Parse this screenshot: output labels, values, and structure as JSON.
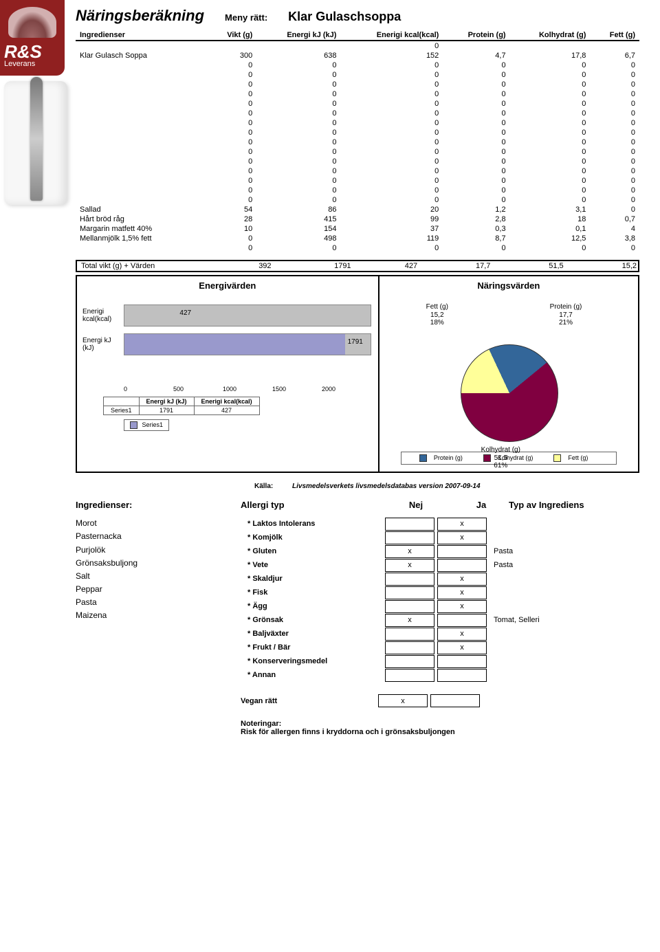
{
  "logo": {
    "big": "R&S",
    "small": "Leverans"
  },
  "header": {
    "title": "Näringsberäkning",
    "menu_label": "Meny rätt:",
    "dish": "Klar Gulaschsoppa"
  },
  "columns": [
    "Ingredienser",
    "Vikt (g)",
    "Energi kJ (kJ)",
    "Enerigi kcal(kcal)",
    "Protein (g)",
    "Kolhydrat (g)",
    "Fett (g)"
  ],
  "pre_row": [
    "",
    "",
    "",
    "0",
    "",
    "",
    ""
  ],
  "rows": [
    [
      "Klar Gulasch Soppa",
      "300",
      "638",
      "152",
      "4,7",
      "17,8",
      "6,7"
    ],
    [
      "",
      "0",
      "0",
      "0",
      "0",
      "0",
      "0"
    ],
    [
      "",
      "0",
      "0",
      "0",
      "0",
      "0",
      "0"
    ],
    [
      "",
      "0",
      "0",
      "0",
      "0",
      "0",
      "0"
    ],
    [
      "",
      "0",
      "0",
      "0",
      "0",
      "0",
      "0"
    ],
    [
      "",
      "0",
      "0",
      "0",
      "0",
      "0",
      "0"
    ],
    [
      "",
      "0",
      "0",
      "0",
      "0",
      "0",
      "0"
    ],
    [
      "",
      "0",
      "0",
      "0",
      "0",
      "0",
      "0"
    ],
    [
      "",
      "0",
      "0",
      "0",
      "0",
      "0",
      "0"
    ],
    [
      "",
      "0",
      "0",
      "0",
      "0",
      "0",
      "0"
    ],
    [
      "",
      "0",
      "0",
      "0",
      "0",
      "0",
      "0"
    ],
    [
      "",
      "0",
      "0",
      "0",
      "0",
      "0",
      "0"
    ],
    [
      "",
      "0",
      "0",
      "0",
      "0",
      "0",
      "0"
    ],
    [
      "",
      "0",
      "0",
      "0",
      "0",
      "0",
      "0"
    ],
    [
      "",
      "0",
      "0",
      "0",
      "0",
      "0",
      "0"
    ],
    [
      "",
      "0",
      "0",
      "0",
      "0",
      "0",
      "0"
    ],
    [
      "Sallad",
      "54",
      "86",
      "20",
      "1,2",
      "3,1",
      "0"
    ],
    [
      "Hårt bröd råg",
      "28",
      "415",
      "99",
      "2,8",
      "18",
      "0,7"
    ],
    [
      "Margarin matfett 40%",
      "10",
      "154",
      "37",
      "0,3",
      "0,1",
      "4"
    ],
    [
      "Mellanmjölk 1,5% fett",
      "0",
      "498",
      "119",
      "8,7",
      "12,5",
      "3,8"
    ],
    [
      "",
      "0",
      "0",
      "0",
      "0",
      "0",
      "0"
    ]
  ],
  "total": {
    "label": "Total vikt (g) + Värden",
    "v": [
      "392",
      "1791",
      "427",
      "17,7",
      "51,5",
      "15,2"
    ]
  },
  "energy_chart": {
    "title": "Energivärden",
    "series": [
      {
        "label": "Enerigi\nkcal(kcal)",
        "value": 427,
        "value_text": "427",
        "color": "#c0c0c0",
        "max": 2000
      },
      {
        "label": "Energi kJ (kJ)",
        "value": 1791,
        "value_text": "1791",
        "color": "#9999cc",
        "max": 2000
      }
    ],
    "ticks": [
      "0",
      "500",
      "1000",
      "1500",
      "2000"
    ],
    "mini_table": {
      "head": [
        "",
        "Energi kJ (kJ)",
        "Enerigi kcal(kcal)"
      ],
      "row": [
        "Series1",
        "1791",
        "427"
      ]
    },
    "legend": "Series1"
  },
  "pie": {
    "title": "Näringsvärden",
    "slices": [
      {
        "name": "Protein (g)",
        "value": "17,7",
        "pct": "21%",
        "color": "#336699"
      },
      {
        "name": "Kolhydrat (g)",
        "value": "51,5",
        "pct": "61%",
        "color": "#800040"
      },
      {
        "name": "Fett (g)",
        "value": "15,2",
        "pct": "18%",
        "color": "#ffff99"
      }
    ],
    "legend": [
      "Protein (g)",
      "Kolhydrat (g)",
      "Fett (g)"
    ]
  },
  "source": {
    "label": "Källa:",
    "text": "Livsmedelsverkets livsmedelsdatabas version 2007-09-14"
  },
  "section2": {
    "heads": [
      "Ingredienser:",
      "Allergi typ",
      "Nej",
      "Ja",
      "Typ av Ingrediens"
    ],
    "ingredients": [
      "Morot",
      "Pasternacka",
      "Purjolök",
      "Grönsaksbuljong",
      "Salt",
      "Peppar",
      "Pasta",
      "Maizena"
    ],
    "allergies": [
      {
        "name": "* Laktos Intolerans",
        "nej": "",
        "ja": "x",
        "typ": ""
      },
      {
        "name": "* Komjölk",
        "nej": "",
        "ja": "x",
        "typ": ""
      },
      {
        "name": "* Gluten",
        "nej": "x",
        "ja": "",
        "typ": "Pasta"
      },
      {
        "name": "* Vete",
        "nej": "x",
        "ja": "",
        "typ": "Pasta"
      },
      {
        "name": "* Skaldjur",
        "nej": "",
        "ja": "x",
        "typ": ""
      },
      {
        "name": "* Fisk",
        "nej": "",
        "ja": "x",
        "typ": ""
      },
      {
        "name": "* Ägg",
        "nej": "",
        "ja": "x",
        "typ": ""
      },
      {
        "name": "* Grönsak",
        "nej": "x",
        "ja": "",
        "typ": "Tomat, Selleri"
      },
      {
        "name": "* Baljväxter",
        "nej": "",
        "ja": "x",
        "typ": ""
      },
      {
        "name": "* Frukt / Bär",
        "nej": "",
        "ja": "x",
        "typ": ""
      },
      {
        "name": "* Konserveringsmedel",
        "nej": "",
        "ja": "",
        "typ": ""
      },
      {
        "name": "* Annan",
        "nej": "",
        "ja": "",
        "typ": ""
      }
    ],
    "vegan": {
      "label": "Vegan rätt",
      "nej": "x",
      "ja": ""
    },
    "notes_label": "Noteringar:",
    "notes_text": "Risk för allergen finns i kryddorna och i grönsaksbuljongen"
  }
}
